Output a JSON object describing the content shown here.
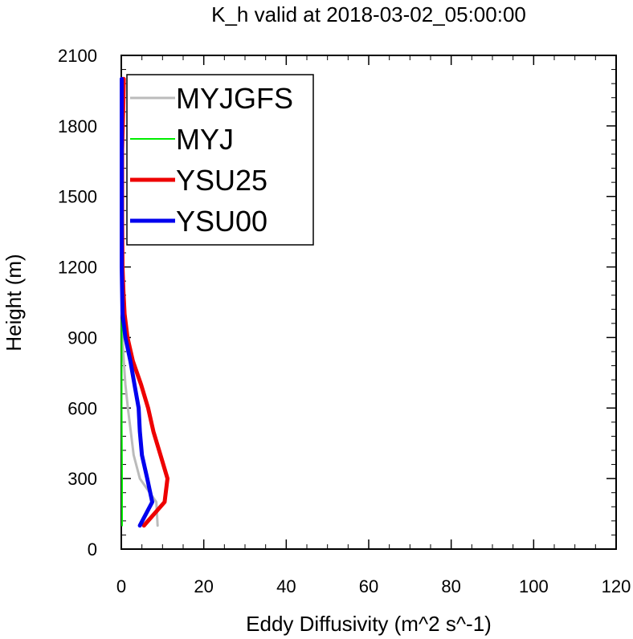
{
  "chart_data": {
    "type": "line",
    "title": "K_h valid at 2018-03-02_05:00:00",
    "xlabel": "Eddy Diffusivity (m^2 s^-1)",
    "ylabel": "Height (m)",
    "xlim": [
      0,
      120
    ],
    "ylim": [
      0,
      2100
    ],
    "x_ticks": [
      "0",
      "20",
      "40",
      "60",
      "80",
      "100",
      "120"
    ],
    "y_ticks": [
      "0",
      "300",
      "600",
      "900",
      "1200",
      "1500",
      "1800",
      "2100"
    ],
    "grid": false,
    "legend_position": "top-left",
    "series": [
      {
        "name": "MYJGFS",
        "color": "#bbbbbb",
        "points": [
          [
            8.8,
            100
          ],
          [
            8.5,
            200
          ],
          [
            4.5,
            300
          ],
          [
            3.0,
            400
          ],
          [
            2.3,
            500
          ],
          [
            1.6,
            600
          ],
          [
            1.0,
            700
          ],
          [
            0.6,
            800
          ],
          [
            0.3,
            900
          ],
          [
            0.2,
            1000
          ],
          [
            0.1,
            1200
          ],
          [
            0.1,
            1500
          ],
          [
            0.1,
            1800
          ],
          [
            0.1,
            2000
          ]
        ]
      },
      {
        "name": "MYJ",
        "color": "#00ee00",
        "points": [
          [
            0.2,
            100
          ],
          [
            0.2,
            300
          ],
          [
            0.1,
            600
          ],
          [
            0.1,
            900
          ],
          [
            0.1,
            1200
          ],
          [
            0.1,
            1500
          ],
          [
            0.1,
            1800
          ],
          [
            0.1,
            2000
          ]
        ]
      },
      {
        "name": "YSU25",
        "color": "#ee0000",
        "points": [
          [
            5.5,
            100
          ],
          [
            10.5,
            200
          ],
          [
            11.2,
            300
          ],
          [
            9.5,
            400
          ],
          [
            7.8,
            500
          ],
          [
            6.5,
            600
          ],
          [
            4.8,
            700
          ],
          [
            2.8,
            800
          ],
          [
            1.5,
            900
          ],
          [
            0.8,
            1000
          ],
          [
            0.5,
            1100
          ],
          [
            0.3,
            1200
          ],
          [
            0.2,
            1400
          ],
          [
            0.2,
            1700
          ],
          [
            0.5,
            1900
          ],
          [
            0.6,
            2000
          ]
        ]
      },
      {
        "name": "YSU00",
        "color": "#0000ee",
        "points": [
          [
            4.5,
            100
          ],
          [
            7.5,
            200
          ],
          [
            6.3,
            300
          ],
          [
            5.0,
            400
          ],
          [
            4.5,
            500
          ],
          [
            4.2,
            600
          ],
          [
            3.2,
            700
          ],
          [
            2.2,
            800
          ],
          [
            1.0,
            900
          ],
          [
            0.3,
            1000
          ],
          [
            0.1,
            1200
          ],
          [
            0.1,
            1500
          ],
          [
            0.1,
            1800
          ],
          [
            0.1,
            2000
          ]
        ]
      }
    ]
  }
}
